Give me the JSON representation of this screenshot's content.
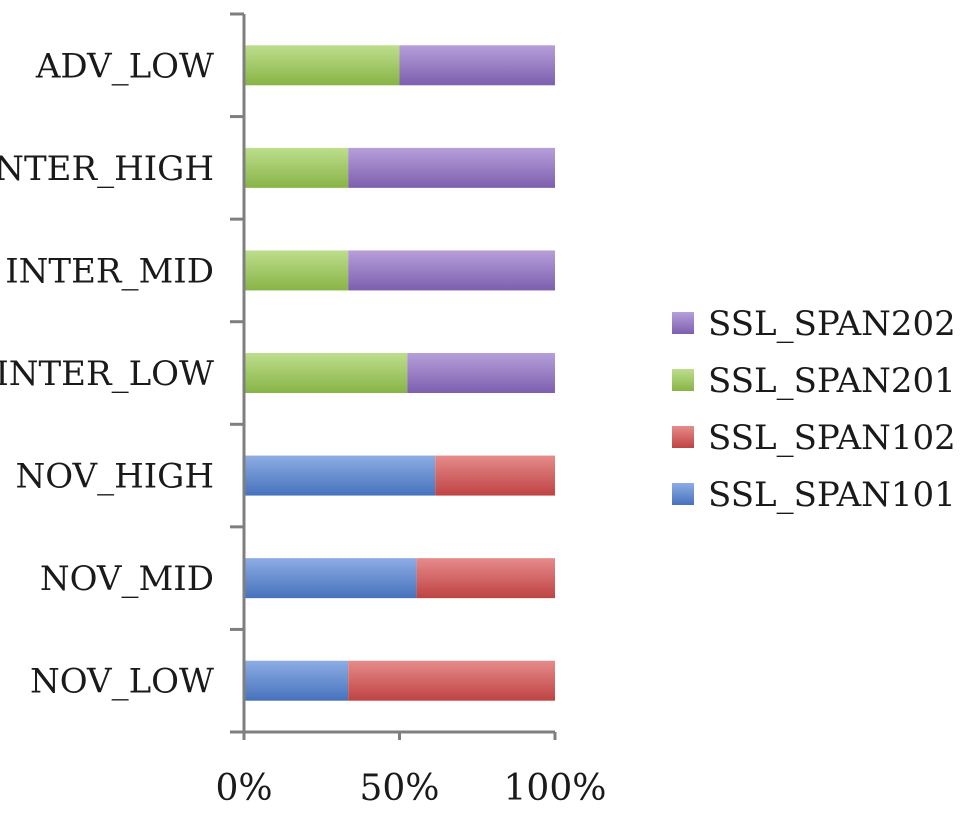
{
  "chart_data": {
    "type": "bar",
    "orientation": "horizontal",
    "stacked": "percent",
    "title": "",
    "xlabel": "",
    "ylabel": "",
    "xlim": [
      0,
      100
    ],
    "x_ticks": [
      "0%",
      "50%",
      "100%"
    ],
    "categories": [
      "ADV_LOW",
      "INTER_HIGH",
      "INTER_MID",
      "INTER_LOW",
      "NOV_HIGH",
      "NOV_MID",
      "NOV_LOW"
    ],
    "series": [
      {
        "name": "SSL_SPAN101",
        "color": "#4f81d6",
        "values": [
          0,
          0,
          0,
          0,
          61.5,
          55.5,
          33.5
        ]
      },
      {
        "name": "SSL_SPAN102",
        "color": "#d94c4c",
        "values": [
          0,
          0,
          0,
          0,
          38.5,
          44.5,
          66.5
        ]
      },
      {
        "name": "SSL_SPAN201",
        "color": "#9acc4f",
        "values": [
          50,
          33.5,
          33.5,
          52.5,
          0,
          0,
          0
        ]
      },
      {
        "name": "SSL_SPAN202",
        "color": "#8e6cc6",
        "values": [
          50,
          66.5,
          66.5,
          47.5,
          0,
          0,
          0
        ]
      }
    ],
    "legend": {
      "position": "right",
      "order": [
        "SSL_SPAN202",
        "SSL_SPAN201",
        "SSL_SPAN102",
        "SSL_SPAN101"
      ]
    },
    "grid": false
  }
}
